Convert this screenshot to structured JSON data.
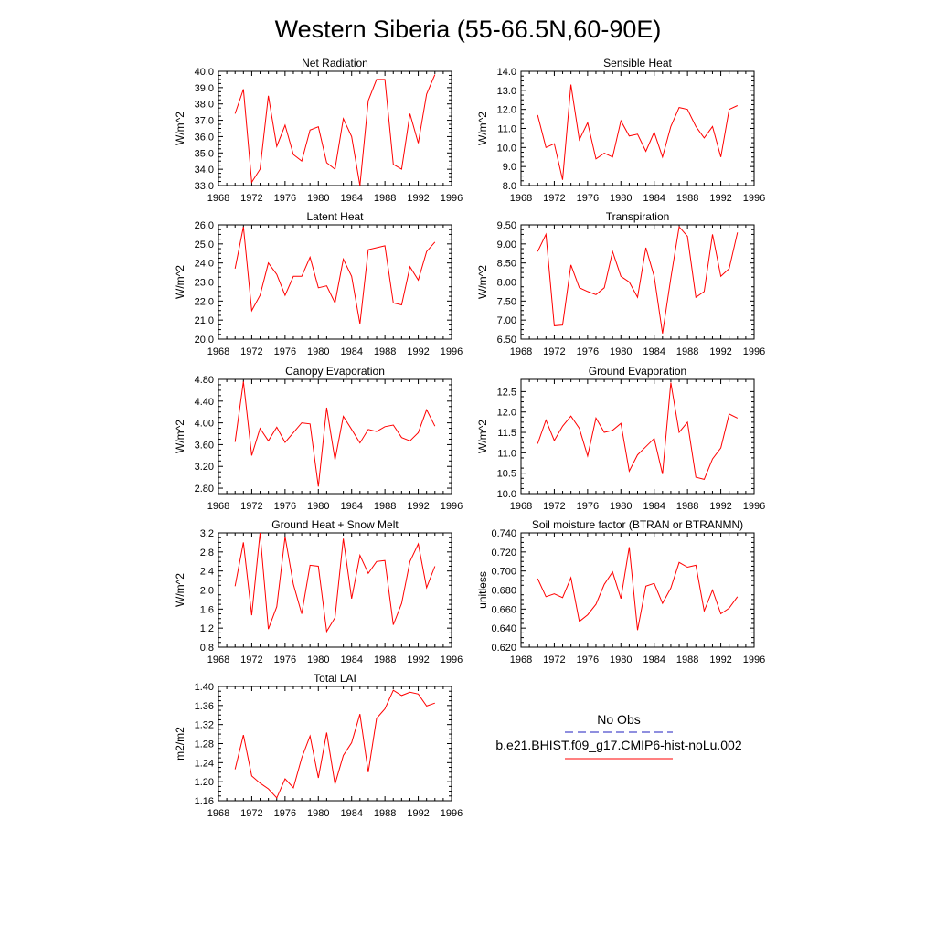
{
  "page": {
    "title": "Western Siberia (55-66.5N,60-90E)"
  },
  "legend": {
    "items": [
      {
        "label": "No Obs",
        "color": "#1f1fbf",
        "style": "dashed"
      },
      {
        "label": "b.e21.BHIST.f09_g17.CMIP6-hist-noLu.002",
        "color": "#ff0000",
        "style": "solid"
      }
    ]
  },
  "chart_data": [
    {
      "type": "line",
      "title": "Net Radiation",
      "ylabel": "W/m^2",
      "xlim": [
        1968,
        1996
      ],
      "xticks": [
        "1968",
        "1972",
        "1976",
        "1980",
        "1984",
        "1988",
        "1992",
        "1996"
      ],
      "ylim": [
        33.0,
        40.0
      ],
      "yticks": [
        "33.0",
        "34.0",
        "35.0",
        "36.0",
        "37.0",
        "38.0",
        "39.0",
        "40.0"
      ],
      "ytick_values": [
        33,
        34,
        35,
        36,
        37,
        38,
        39,
        40
      ],
      "series": [
        {
          "color": "#ff0000",
          "x": [
            1970,
            1971,
            1972,
            1973,
            1974,
            1975,
            1976,
            1977,
            1978,
            1979,
            1980,
            1981,
            1982,
            1983,
            1984,
            1985,
            1986,
            1987,
            1988,
            1989,
            1990,
            1991,
            1992,
            1993,
            1994
          ],
          "values": [
            37.4,
            38.9,
            33.2,
            34.0,
            38.5,
            35.4,
            36.7,
            34.9,
            34.5,
            36.4,
            36.6,
            34.4,
            34.0,
            37.1,
            36.0,
            33.0,
            38.2,
            39.5,
            39.5,
            34.3,
            34.0,
            37.4,
            35.6,
            38.6,
            39.8
          ]
        }
      ]
    },
    {
      "type": "line",
      "title": "Sensible Heat",
      "ylabel": "W/m^2",
      "xlim": [
        1968,
        1996
      ],
      "xticks": [
        "1968",
        "1972",
        "1976",
        "1980",
        "1984",
        "1988",
        "1992",
        "1996"
      ],
      "ylim": [
        8.0,
        14.0
      ],
      "yticks": [
        "8.0",
        "9.0",
        "10.0",
        "11.0",
        "12.0",
        "13.0",
        "14.0"
      ],
      "ytick_values": [
        8,
        9,
        10,
        11,
        12,
        13,
        14
      ],
      "series": [
        {
          "color": "#ff0000",
          "x": [
            1970,
            1971,
            1972,
            1973,
            1974,
            1975,
            1976,
            1977,
            1978,
            1979,
            1980,
            1981,
            1982,
            1983,
            1984,
            1985,
            1986,
            1987,
            1988,
            1989,
            1990,
            1991,
            1992,
            1993,
            1994
          ],
          "values": [
            11.7,
            10.0,
            10.2,
            8.3,
            13.3,
            10.4,
            11.3,
            9.4,
            9.7,
            9.5,
            11.4,
            10.6,
            10.7,
            9.8,
            10.8,
            9.5,
            11.1,
            12.1,
            12.0,
            11.1,
            10.5,
            11.1,
            9.5,
            12.0,
            12.2
          ]
        }
      ]
    },
    {
      "type": "line",
      "title": "Latent Heat",
      "ylabel": "W/m^2",
      "xlim": [
        1968,
        1996
      ],
      "xticks": [
        "1968",
        "1972",
        "1976",
        "1980",
        "1984",
        "1988",
        "1992",
        "1996"
      ],
      "ylim": [
        20.0,
        26.0
      ],
      "yticks": [
        "20.0",
        "21.0",
        "22.0",
        "23.0",
        "24.0",
        "25.0",
        "26.0"
      ],
      "ytick_values": [
        20,
        21,
        22,
        23,
        24,
        25,
        26
      ],
      "series": [
        {
          "color": "#ff0000",
          "x": [
            1970,
            1971,
            1972,
            1973,
            1974,
            1975,
            1976,
            1977,
            1978,
            1979,
            1980,
            1981,
            1982,
            1983,
            1984,
            1985,
            1986,
            1987,
            1988,
            1989,
            1990,
            1991,
            1992,
            1993,
            1994
          ],
          "values": [
            23.7,
            25.9,
            21.5,
            22.3,
            24.0,
            23.4,
            22.3,
            23.3,
            23.3,
            24.3,
            22.7,
            22.8,
            21.9,
            24.2,
            23.3,
            20.8,
            24.7,
            24.8,
            24.9,
            21.9,
            21.8,
            23.8,
            23.1,
            24.6,
            25.1
          ]
        }
      ]
    },
    {
      "type": "line",
      "title": "Transpiration",
      "ylabel": "W/m^2",
      "xlim": [
        1968,
        1996
      ],
      "xticks": [
        "1968",
        "1972",
        "1976",
        "1980",
        "1984",
        "1988",
        "1992",
        "1996"
      ],
      "ylim": [
        6.5,
        9.5
      ],
      "yticks": [
        "6.50",
        "7.00",
        "7.50",
        "8.00",
        "8.50",
        "9.00",
        "9.50"
      ],
      "ytick_values": [
        6.5,
        7.0,
        7.5,
        8.0,
        8.5,
        9.0,
        9.5
      ],
      "series": [
        {
          "color": "#ff0000",
          "x": [
            1970,
            1971,
            1972,
            1973,
            1974,
            1975,
            1976,
            1977,
            1978,
            1979,
            1980,
            1981,
            1982,
            1983,
            1984,
            1985,
            1986,
            1987,
            1988,
            1989,
            1990,
            1991,
            1992,
            1993,
            1994
          ],
          "values": [
            8.8,
            9.25,
            6.85,
            6.87,
            8.45,
            7.85,
            7.75,
            7.67,
            7.85,
            8.8,
            8.15,
            8.0,
            7.6,
            8.9,
            8.15,
            6.65,
            8.1,
            9.45,
            9.2,
            7.6,
            7.75,
            9.25,
            8.15,
            8.35,
            9.3
          ]
        }
      ]
    },
    {
      "type": "line",
      "title": "Canopy Evaporation",
      "ylabel": "W/m^2",
      "xlim": [
        1968,
        1996
      ],
      "xticks": [
        "1968",
        "1972",
        "1976",
        "1980",
        "1984",
        "1988",
        "1992",
        "1996"
      ],
      "ylim": [
        2.7,
        4.8
      ],
      "yticks": [
        "2.80",
        "3.20",
        "3.60",
        "4.00",
        "4.40",
        "4.80"
      ],
      "ytick_values": [
        2.8,
        3.2,
        3.6,
        4.0,
        4.4,
        4.8
      ],
      "series": [
        {
          "color": "#ff0000",
          "x": [
            1970,
            1971,
            1972,
            1973,
            1974,
            1975,
            1976,
            1977,
            1978,
            1979,
            1980,
            1981,
            1982,
            1983,
            1984,
            1985,
            1986,
            1987,
            1988,
            1989,
            1990,
            1991,
            1992,
            1993,
            1994
          ],
          "values": [
            3.65,
            4.76,
            3.4,
            3.9,
            3.67,
            3.92,
            3.64,
            3.82,
            4.0,
            3.98,
            2.83,
            4.28,
            3.32,
            4.12,
            3.88,
            3.63,
            3.88,
            3.84,
            3.93,
            3.96,
            3.73,
            3.67,
            3.82,
            4.24,
            3.94
          ]
        }
      ]
    },
    {
      "type": "line",
      "title": "Ground Evaporation",
      "ylabel": "W/m^2",
      "xlim": [
        1968,
        1996
      ],
      "xticks": [
        "1968",
        "1972",
        "1976",
        "1980",
        "1984",
        "1988",
        "1992",
        "1996"
      ],
      "ylim": [
        10.0,
        12.8
      ],
      "yticks": [
        "10.0",
        "10.5",
        "11.0",
        "11.5",
        "12.0",
        "12.5"
      ],
      "ytick_values": [
        10.0,
        10.5,
        11.0,
        11.5,
        12.0,
        12.5
      ],
      "series": [
        {
          "color": "#ff0000",
          "x": [
            1970,
            1971,
            1972,
            1973,
            1974,
            1975,
            1976,
            1977,
            1978,
            1979,
            1980,
            1981,
            1982,
            1983,
            1984,
            1985,
            1986,
            1987,
            1988,
            1989,
            1990,
            1991,
            1992,
            1993,
            1994
          ],
          "values": [
            11.22,
            11.8,
            11.3,
            11.65,
            11.9,
            11.6,
            10.92,
            11.85,
            11.5,
            11.55,
            11.72,
            10.55,
            10.95,
            11.15,
            11.35,
            10.48,
            12.72,
            11.5,
            11.75,
            10.4,
            10.35,
            10.85,
            11.12,
            11.95,
            11.85
          ]
        }
      ]
    },
    {
      "type": "line",
      "title": "Ground Heat + Snow Melt",
      "ylabel": "W/m^2",
      "xlim": [
        1968,
        1996
      ],
      "xticks": [
        "1968",
        "1972",
        "1976",
        "1980",
        "1984",
        "1988",
        "1992",
        "1996"
      ],
      "ylim": [
        0.8,
        3.2
      ],
      "yticks": [
        "0.8",
        "1.2",
        "1.6",
        "2.0",
        "2.4",
        "2.8",
        "3.2"
      ],
      "ytick_values": [
        0.8,
        1.2,
        1.6,
        2.0,
        2.4,
        2.8,
        3.2
      ],
      "series": [
        {
          "color": "#ff0000",
          "x": [
            1970,
            1971,
            1972,
            1973,
            1974,
            1975,
            1976,
            1977,
            1978,
            1979,
            1980,
            1981,
            1982,
            1983,
            1984,
            1985,
            1986,
            1987,
            1988,
            1989,
            1990,
            1991,
            1992,
            1993,
            1994
          ],
          "values": [
            2.08,
            3.0,
            1.47,
            3.2,
            1.18,
            1.65,
            3.12,
            2.12,
            1.5,
            2.52,
            2.5,
            1.13,
            1.42,
            3.08,
            1.82,
            2.73,
            2.35,
            2.6,
            2.62,
            1.27,
            1.72,
            2.6,
            2.97,
            2.05,
            2.5
          ]
        }
      ]
    },
    {
      "type": "line",
      "title": "Soil moisture factor (BTRAN or BTRANMN)",
      "ylabel": "unitless",
      "xlim": [
        1968,
        1996
      ],
      "xticks": [
        "1968",
        "1972",
        "1976",
        "1980",
        "1984",
        "1988",
        "1992",
        "1996"
      ],
      "ylim": [
        0.62,
        0.74
      ],
      "yticks": [
        "0.620",
        "0.640",
        "0.660",
        "0.680",
        "0.700",
        "0.720",
        "0.740"
      ],
      "ytick_values": [
        0.62,
        0.64,
        0.66,
        0.68,
        0.7,
        0.72,
        0.74
      ],
      "series": [
        {
          "color": "#ff0000",
          "x": [
            1970,
            1971,
            1972,
            1973,
            1974,
            1975,
            1976,
            1977,
            1978,
            1979,
            1980,
            1981,
            1982,
            1983,
            1984,
            1985,
            1986,
            1987,
            1988,
            1989,
            1990,
            1991,
            1992,
            1993,
            1994
          ],
          "values": [
            0.692,
            0.673,
            0.676,
            0.672,
            0.693,
            0.647,
            0.654,
            0.665,
            0.686,
            0.699,
            0.671,
            0.725,
            0.638,
            0.684,
            0.687,
            0.666,
            0.682,
            0.709,
            0.704,
            0.706,
            0.658,
            0.68,
            0.655,
            0.661,
            0.673
          ]
        }
      ]
    },
    {
      "type": "line",
      "title": "Total LAI",
      "ylabel": "m2/m2",
      "xlim": [
        1968,
        1996
      ],
      "xticks": [
        "1968",
        "1972",
        "1976",
        "1980",
        "1984",
        "1988",
        "1992",
        "1996"
      ],
      "ylim": [
        1.16,
        1.4
      ],
      "yticks": [
        "1.16",
        "1.20",
        "1.24",
        "1.28",
        "1.32",
        "1.36",
        "1.40"
      ],
      "ytick_values": [
        1.16,
        1.2,
        1.24,
        1.28,
        1.32,
        1.36,
        1.4
      ],
      "series": [
        {
          "color": "#ff0000",
          "x": [
            1970,
            1971,
            1972,
            1973,
            1974,
            1975,
            1976,
            1977,
            1978,
            1979,
            1980,
            1981,
            1982,
            1983,
            1984,
            1985,
            1986,
            1987,
            1988,
            1989,
            1990,
            1991,
            1992,
            1993,
            1994
          ],
          "values": [
            1.226,
            1.298,
            1.212,
            1.197,
            1.185,
            1.166,
            1.206,
            1.187,
            1.25,
            1.296,
            1.208,
            1.303,
            1.195,
            1.255,
            1.282,
            1.342,
            1.22,
            1.333,
            1.353,
            1.392,
            1.381,
            1.388,
            1.384,
            1.359,
            1.365
          ]
        }
      ]
    }
  ]
}
